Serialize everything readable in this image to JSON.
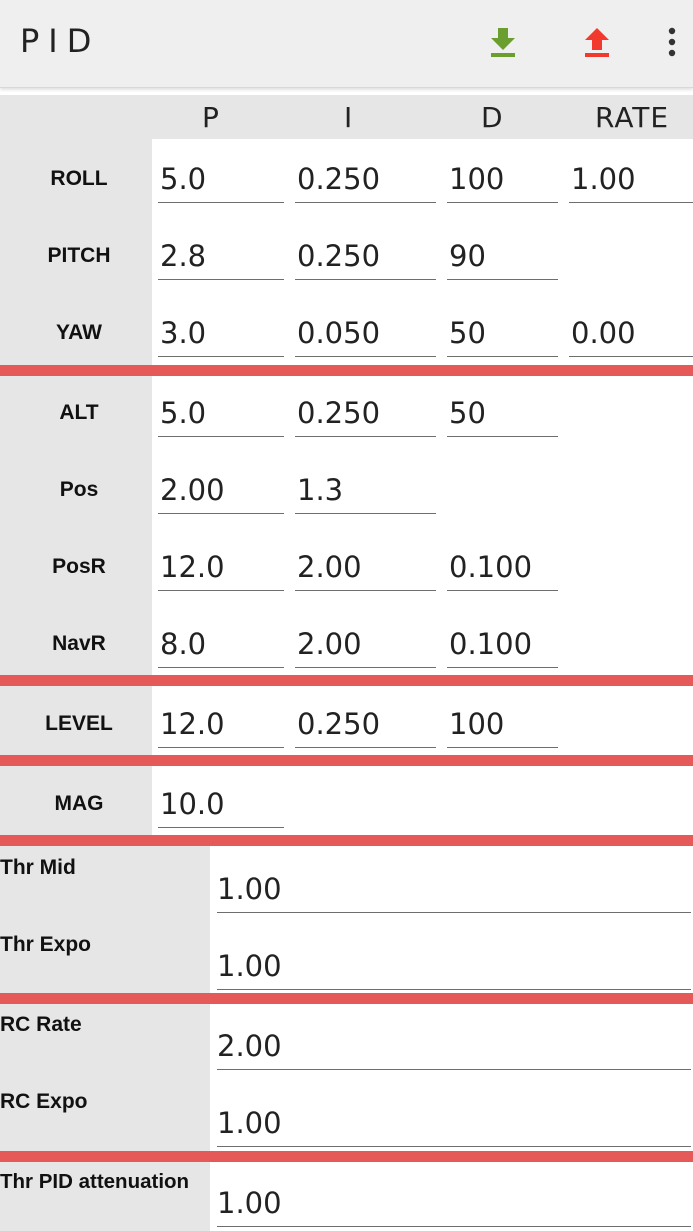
{
  "toolbar": {
    "title": "PID",
    "download_icon": "download-icon",
    "upload_icon": "upload-icon",
    "menu_icon": "more-vert-icon",
    "colors": {
      "download": "#6a9e2f",
      "upload": "#f2392d"
    }
  },
  "columns": [
    "P",
    "I",
    "D",
    "RATE"
  ],
  "rows": {
    "roll": {
      "label": "ROLL",
      "p": "5.0",
      "i": "0.250",
      "d": "100",
      "rate": "1.00"
    },
    "pitch": {
      "label": "PITCH",
      "p": "2.8",
      "i": "0.250",
      "d": "90"
    },
    "yaw": {
      "label": "YAW",
      "p": "3.0",
      "i": "0.050",
      "d": "50",
      "rate": "0.00"
    },
    "alt": {
      "label": "ALT",
      "p": "5.0",
      "i": "0.250",
      "d": "50"
    },
    "pos": {
      "label": "Pos",
      "p": "2.00",
      "i": "1.3"
    },
    "posr": {
      "label": "PosR",
      "p": "12.0",
      "i": "2.00",
      "d": "0.100"
    },
    "navr": {
      "label": "NavR",
      "p": "8.0",
      "i": "2.00",
      "d": "0.100"
    },
    "level": {
      "label": "LEVEL",
      "p": "12.0",
      "i": "0.250",
      "d": "100"
    },
    "mag": {
      "label": "MAG",
      "p": "10.0"
    }
  },
  "throttle": {
    "mid_label": "Thr Mid",
    "mid_value": "1.00",
    "expo_label": "Thr Expo",
    "expo_value": "1.00"
  },
  "rc": {
    "rate_label": "RC Rate",
    "rate_value": "2.00",
    "expo_label": "RC Expo",
    "expo_value": "1.00"
  },
  "tpa": {
    "label": "Thr PID attenuation",
    "value": "1.00"
  },
  "colors": {
    "separator": "#e65959",
    "label_bg": "#e6e6e6"
  }
}
